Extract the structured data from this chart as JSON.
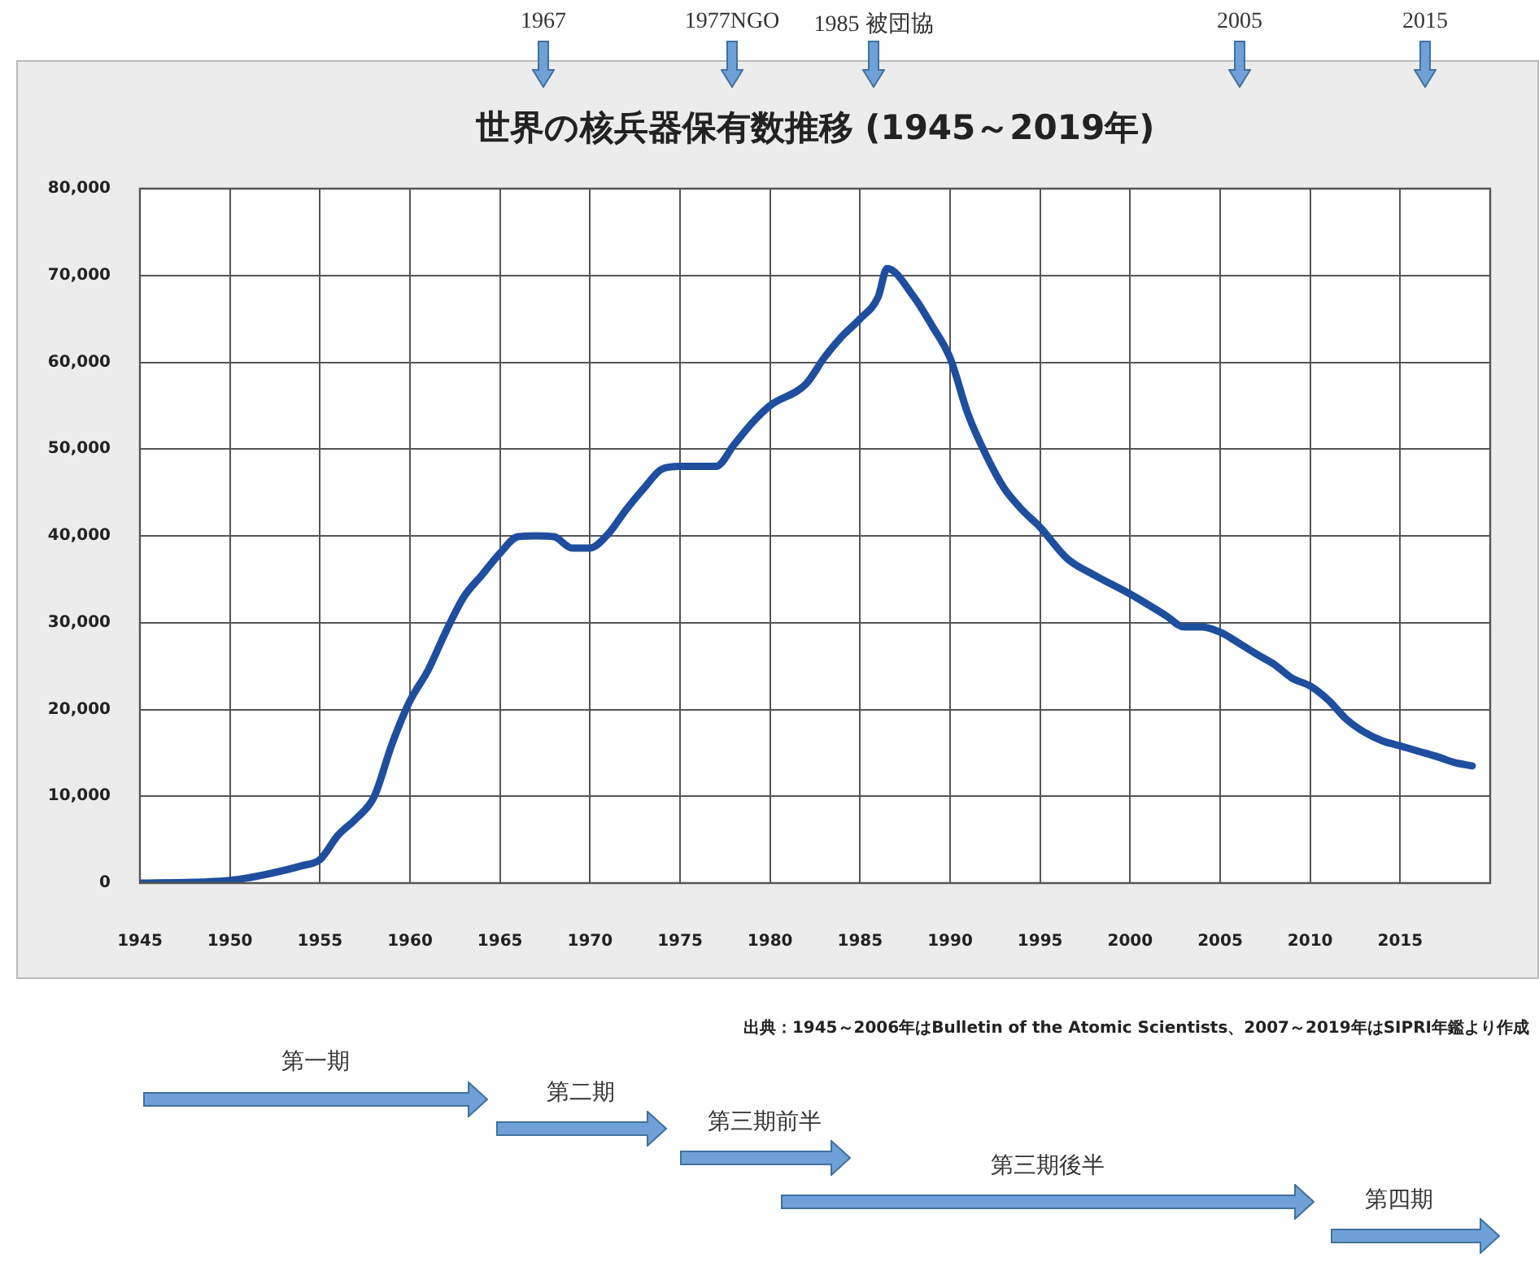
{
  "chart_data": {
    "type": "line",
    "title": "世界の核兵器保有数推移 (1945～2019年)",
    "x": [
      1945,
      1948,
      1950,
      1952,
      1954,
      1955,
      1956,
      1957,
      1958,
      1959,
      1960,
      1961,
      1962,
      1963,
      1964,
      1965,
      1966,
      1967,
      1968,
      1969,
      1970,
      1971,
      1972,
      1973,
      1974,
      1975,
      1977,
      1978,
      1979,
      1980,
      1982,
      1983,
      1984,
      1985,
      1986,
      1986.5,
      1988,
      1989,
      1990,
      1991,
      1992,
      1993,
      1994,
      1995,
      1996.5,
      1998,
      2000,
      2002,
      2003,
      2004,
      2005,
      2006,
      2007,
      2008,
      2009,
      2010,
      2011,
      2012,
      2013,
      2014,
      2015,
      2016,
      2017,
      2018,
      2019
    ],
    "series": [
      {
        "color": "#1f4e9e",
        "values": [
          0,
          100,
          300,
          1000,
          2000,
          2700,
          5500,
          7400,
          9900,
          16000,
          21000,
          24500,
          29000,
          33000,
          35500,
          38000,
          39900,
          40000,
          39900,
          38600,
          38600,
          40200,
          43000,
          45500,
          47700,
          48000,
          48000,
          50500,
          53000,
          55000,
          57500,
          60500,
          63000,
          65000,
          67500,
          70800,
          67500,
          64200,
          60500,
          54000,
          49300,
          45500,
          43000,
          41000,
          37400,
          35500,
          33300,
          30800,
          29500,
          29500,
          28900,
          27700,
          26400,
          25200,
          23600,
          22700,
          21100,
          18900,
          17400,
          16400,
          15800,
          15200,
          14600,
          13900,
          13500
        ]
      }
    ],
    "xlim": [
      1945,
      2020
    ],
    "xticks": [
      1945,
      1950,
      1955,
      1960,
      1965,
      1970,
      1975,
      1980,
      1985,
      1990,
      1995,
      2000,
      2005,
      2010,
      2015,
      {
        "value": 2020,
        "label": null
      }
    ],
    "ylim": [
      0,
      80000
    ],
    "yticks": [
      0,
      {
        "value": 10000,
        "label": "10,000"
      },
      {
        "value": 20000,
        "label": "20,000"
      },
      {
        "value": 30000,
        "label": "30,000"
      },
      {
        "value": 40000,
        "label": "40,000"
      },
      {
        "value": 50000,
        "label": "50,000"
      },
      {
        "value": 60000,
        "label": "60,000"
      },
      {
        "value": 70000,
        "label": "70,000"
      },
      {
        "value": 80000,
        "label": "80,000"
      }
    ],
    "grid": true,
    "legend": false,
    "marker": "none",
    "line_style": "solid",
    "annotations": [
      "1967",
      "1977NGO",
      "1985 被団協",
      "2005",
      "2015",
      "出典：1945～2006年はBulletin of the Atomic Scientists、2007～2019年はSIPRI年鑑より作成",
      "第一期",
      "第二期",
      "第三期前半",
      "第三期後半",
      "第四期"
    ]
  }
}
